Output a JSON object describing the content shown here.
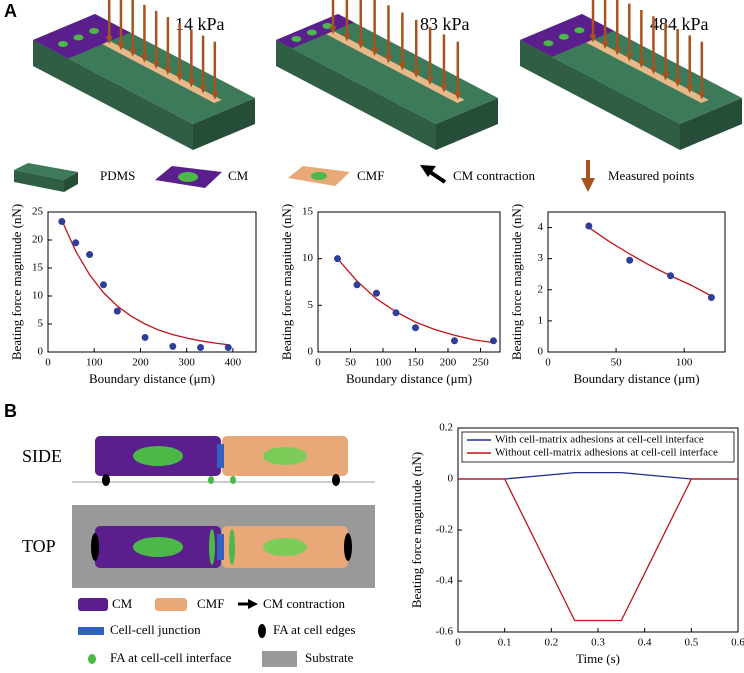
{
  "panel_a": {
    "label": "A",
    "stiffness": [
      "14 kPa",
      "83 kPa",
      "484 kPa"
    ],
    "legend": [
      "PDMS",
      "CM",
      "CMF",
      "CM contraction",
      "Measured points"
    ]
  },
  "panel_b": {
    "label": "B",
    "views": [
      "SIDE",
      "TOP"
    ],
    "legend": [
      "CM",
      "CMF",
      "CM contraction",
      "Cell-cell junction",
      "FA at cell edges",
      "FA at cell-cell interface",
      "Substrate"
    ]
  },
  "chart_data": [
    {
      "type": "scatter",
      "xlabel": "Boundary distance (μm)",
      "ylabel": "Beating force magnitude (nN)",
      "x": [
        30,
        60,
        90,
        120,
        150,
        210,
        270,
        330,
        390
      ],
      "values": [
        23.3,
        19.5,
        17.4,
        12,
        7.3,
        2.6,
        1.0,
        0.8,
        0.8
      ],
      "color": "#2e3e9a",
      "fit": {
        "x": [
          30,
          60,
          90,
          120,
          150,
          180,
          210,
          240,
          270,
          300,
          330,
          360,
          390
        ],
        "values": [
          23.5,
          18,
          13.8,
          10.6,
          8.2,
          6.4,
          5.0,
          3.9,
          3.1,
          2.5,
          2.0,
          1.6,
          1.3
        ],
        "color": "#c0141c"
      },
      "xlim": [
        0,
        450
      ],
      "xticks": [
        0,
        100,
        200,
        300,
        400
      ],
      "ylim": [
        0,
        25
      ],
      "yticks": [
        0,
        5,
        10,
        15,
        20,
        25
      ]
    },
    {
      "type": "scatter",
      "xlabel": "Boundary distance (μm)",
      "ylabel": "Beating force magnitude (nN)",
      "x": [
        30,
        60,
        90,
        120,
        150,
        210,
        270
      ],
      "values": [
        10,
        7.2,
        6.3,
        4.2,
        2.6,
        1.2,
        1.2
      ],
      "color": "#2e3e9a",
      "fit": {
        "x": [
          30,
          60,
          90,
          120,
          150,
          180,
          210,
          240,
          270
        ],
        "values": [
          10,
          7.6,
          5.7,
          4.3,
          3.2,
          2.4,
          1.8,
          1.3,
          1.0
        ],
        "color": "#c0141c"
      },
      "xlim": [
        0,
        280
      ],
      "xticks": [
        0,
        50,
        100,
        150,
        200,
        250
      ],
      "ylim": [
        0,
        15
      ],
      "yticks": [
        0,
        5,
        10,
        15
      ]
    },
    {
      "type": "scatter",
      "xlabel": "Boundary distance (μm)",
      "ylabel": "Beating force magnitude (nN)",
      "x": [
        30,
        60,
        90,
        120
      ],
      "values": [
        4.05,
        2.95,
        2.45,
        1.75
      ],
      "color": "#2e3e9a",
      "fit": {
        "x": [
          30,
          45,
          60,
          75,
          90,
          105,
          120
        ],
        "values": [
          4.0,
          3.55,
          3.15,
          2.78,
          2.45,
          2.15,
          1.8
        ],
        "color": "#c0141c"
      },
      "xlim": [
        0,
        130
      ],
      "xticks": [
        0,
        50,
        100
      ],
      "ylim": [
        0,
        4.5
      ],
      "yticks": [
        0,
        1,
        2,
        3,
        4
      ]
    },
    {
      "type": "line",
      "xlabel": "Time (s)",
      "ylabel": "Beating force magnitude (nN)",
      "x": [
        0,
        0.1,
        0.25,
        0.35,
        0.5,
        0.6
      ],
      "series": [
        {
          "name": "With cell-matrix adhesions at cell-cell interface",
          "color": "#1f2f8f",
          "values": [
            0,
            0,
            0.025,
            0.025,
            0,
            0
          ]
        },
        {
          "name": "Without cell-matrix adhesions at cell-cell interface",
          "color": "#c0141c",
          "values": [
            0,
            0,
            -0.555,
            -0.555,
            0,
            0
          ]
        }
      ],
      "xlim": [
        0,
        0.6
      ],
      "xticks": [
        0,
        0.1,
        0.2,
        0.3,
        0.4,
        0.5,
        0.6
      ],
      "ylim": [
        -0.6,
        0.2
      ],
      "yticks": [
        -0.6,
        -0.4,
        -0.2,
        0,
        0.2
      ],
      "legend": "top"
    }
  ]
}
